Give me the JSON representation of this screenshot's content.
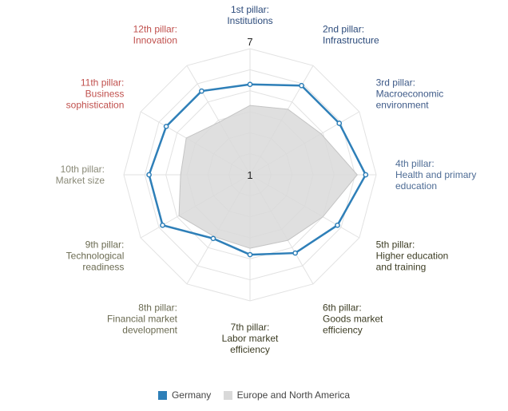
{
  "chart_data": {
    "type": "radar",
    "scale": {
      "min": 1,
      "max": 7,
      "min_label": "1",
      "max_label": "7"
    },
    "categories": [
      {
        "line1": "1st pillar:",
        "rest": [
          "Institutions"
        ],
        "color": "#2b4a7a"
      },
      {
        "line1": "2nd pillar:",
        "rest": [
          "Infrastructure"
        ],
        "color": "#2b4a7a"
      },
      {
        "line1": "3rd pillar:",
        "rest": [
          "Macroeconomic",
          "environment"
        ],
        "color": "#3e5a88"
      },
      {
        "line1": "4th pillar:",
        "rest": [
          "Health and primary",
          "education"
        ],
        "color": "#4e6c95"
      },
      {
        "line1": "5th pillar:",
        "rest": [
          "Higher education",
          "and training"
        ],
        "color": "#3d3d24"
      },
      {
        "line1": "6th pillar:",
        "rest": [
          "Goods market",
          "efficiency"
        ],
        "color": "#3d3d24"
      },
      {
        "line1": "7th pillar:",
        "rest": [
          "Labor market",
          "efficiency"
        ],
        "color": "#3d3d24"
      },
      {
        "line1": "8th pillar:",
        "rest": [
          "Financial market",
          "development"
        ],
        "color": "#6b6b52"
      },
      {
        "line1": "9th pillar:",
        "rest": [
          "Technological",
          "readiness"
        ],
        "color": "#6b6b52"
      },
      {
        "line1": "10th pillar:",
        "rest": [
          "Market size"
        ],
        "color": "#8a8a78"
      },
      {
        "line1": "11th pillar:",
        "rest": [
          "Business",
          "sophistication"
        ],
        "color": "#c0504d"
      },
      {
        "line1": "12th pillar:",
        "rest": [
          "Innovation"
        ],
        "color": "#c0504d"
      }
    ],
    "series": [
      {
        "name": "Germany",
        "color": "#2e7fb8",
        "values": [
          5.3,
          5.9,
          5.9,
          6.5,
          5.8,
          5.3,
          4.8,
          4.5,
          5.8,
          5.8,
          5.6,
          5.6
        ]
      },
      {
        "name": "Europe and North America",
        "color": "#d9d9d9",
        "values": [
          4.3,
          4.6,
          4.9,
          6.1,
          5.0,
          4.6,
          4.5,
          4.4,
          4.9,
          4.3,
          4.5,
          3.9
        ]
      }
    ],
    "grid": true,
    "legend_position": "bottom"
  }
}
